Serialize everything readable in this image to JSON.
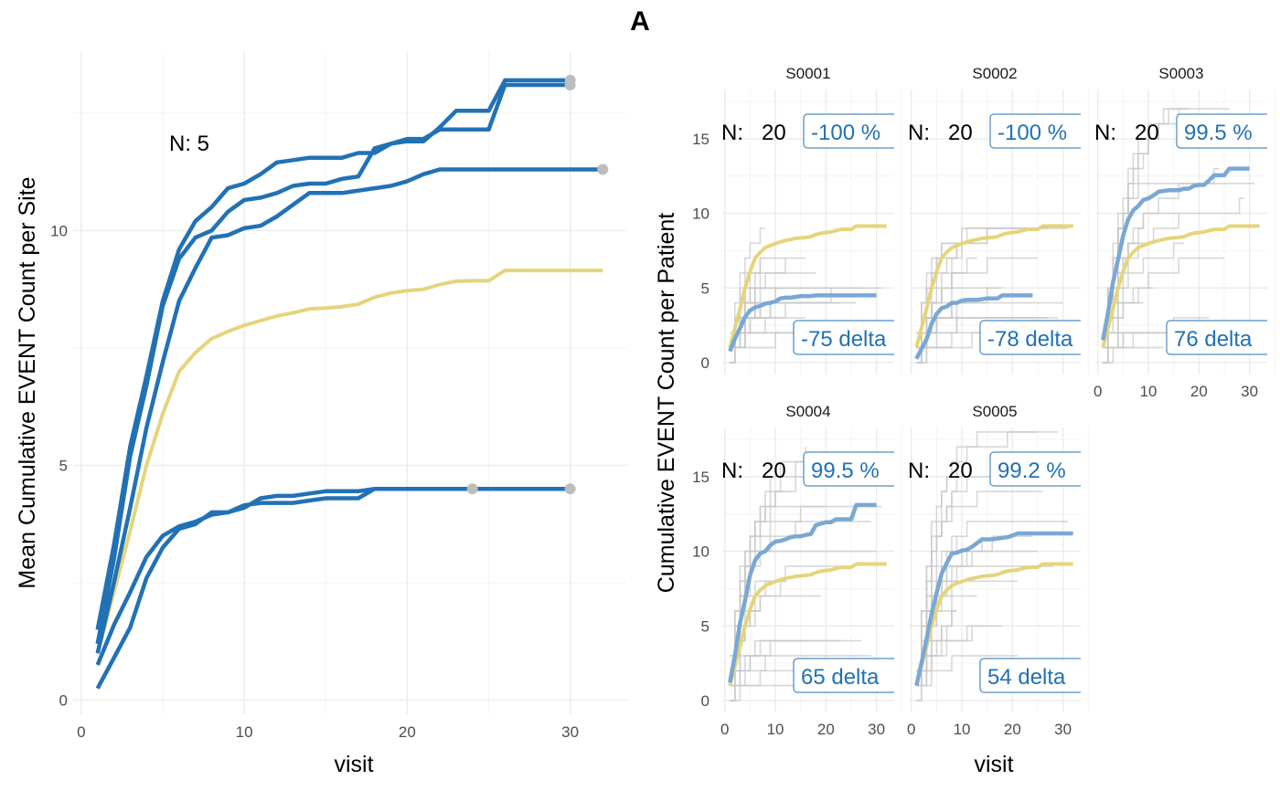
{
  "title": "A",
  "colors": {
    "site": "#2171b5",
    "site_facet": "#7aa8d4",
    "overall": "#e5d57a",
    "patient": "#c8c8c8",
    "endpoint": "#bdbdbd",
    "label": "#2171b5"
  },
  "left_panel": {
    "ylabel": "Mean Cumulative EVENT Count per Site",
    "xlabel": "visit",
    "n_label": "N: 5",
    "x_ticks": [
      "0",
      "10",
      "20",
      "30"
    ],
    "y_ticks": [
      "0",
      "5",
      "10"
    ]
  },
  "right_panel": {
    "ylabel": "Cumulative EVENT Count per Patient",
    "xlabel": "visit",
    "x_ticks": [
      "0",
      "10",
      "20",
      "30"
    ],
    "y_ticks": [
      "0",
      "5",
      "10",
      "15"
    ]
  },
  "facets": [
    {
      "name": "S0001",
      "n_label": "N:",
      "n_value": "20",
      "pct": "-100 %",
      "delta": "-75 delta"
    },
    {
      "name": "S0002",
      "n_label": "N:",
      "n_value": "20",
      "pct": "-100 %",
      "delta": "-78 delta"
    },
    {
      "name": "S0003",
      "n_label": "N:",
      "n_value": "20",
      "pct": "99.5 %",
      "delta": "76 delta"
    },
    {
      "name": "S0004",
      "n_label": "N:",
      "n_value": "20",
      "pct": "99.5 %",
      "delta": "65 delta"
    },
    {
      "name": "S0005",
      "n_label": "N:",
      "n_value": "20",
      "pct": "99.2 %",
      "delta": "54 delta"
    }
  ],
  "chart_data": [
    {
      "type": "line",
      "title": "",
      "xlabel": "visit",
      "ylabel": "Mean Cumulative EVENT Count per Site",
      "xlim": [
        -0.5,
        33.5
      ],
      "ylim": [
        -0.3,
        13.8
      ],
      "x_ticks": [
        0,
        10,
        20,
        30
      ],
      "y_ticks": [
        0,
        5,
        10
      ],
      "overall": {
        "x": [
          1,
          2,
          3,
          4,
          5,
          6,
          7,
          8,
          9,
          10,
          11,
          12,
          13,
          14,
          15,
          16,
          17,
          18,
          19,
          20,
          21,
          22,
          23,
          24,
          25,
          26,
          27,
          28,
          29,
          30,
          31,
          32
        ],
        "y": [
          1.0,
          2.3,
          3.6,
          5.0,
          6.1,
          7.0,
          7.4,
          7.7,
          7.85,
          7.98,
          8.08,
          8.18,
          8.25,
          8.33,
          8.35,
          8.38,
          8.43,
          8.58,
          8.67,
          8.72,
          8.75,
          8.85,
          8.92,
          8.93,
          8.93,
          9.15,
          9.15,
          9.15,
          9.15,
          9.15,
          9.15,
          9.15
        ]
      },
      "series": [
        {
          "name": "S0001",
          "x": [
            1,
            2,
            3,
            4,
            5,
            6,
            7,
            8,
            9,
            10,
            11,
            12,
            13,
            14,
            15,
            16,
            17,
            18,
            19,
            20,
            21,
            22,
            23,
            24
          ],
          "y": [
            0.75,
            1.6,
            2.3,
            3.05,
            3.5,
            3.7,
            3.8,
            3.95,
            4.0,
            4.1,
            4.3,
            4.35,
            4.35,
            4.4,
            4.45,
            4.45,
            4.45,
            4.5,
            4.5,
            4.5,
            4.5,
            4.5,
            4.5,
            4.5
          ]
        },
        {
          "name": "S0002",
          "x": [
            1,
            2,
            3,
            4,
            5,
            6,
            7,
            8,
            9,
            10,
            11,
            12,
            13,
            14,
            15,
            16,
            17,
            18,
            19,
            20,
            21,
            22,
            23,
            24,
            25,
            26,
            27,
            28,
            29,
            30
          ],
          "y": [
            0.25,
            0.9,
            1.55,
            2.6,
            3.25,
            3.65,
            3.75,
            4.0,
            4.0,
            4.15,
            4.2,
            4.2,
            4.2,
            4.25,
            4.3,
            4.3,
            4.3,
            4.5,
            4.5,
            4.5,
            4.5,
            4.5,
            4.5,
            4.5,
            4.5,
            4.5,
            4.5,
            4.5,
            4.5,
            4.5
          ]
        },
        {
          "name": "S0003",
          "x": [
            1,
            2,
            3,
            4,
            5,
            6,
            7,
            8,
            9,
            10,
            11,
            12,
            13,
            14,
            15,
            16,
            17,
            18,
            19,
            20,
            21,
            22,
            23,
            24,
            25,
            26,
            27,
            28,
            29,
            30
          ],
          "y": [
            1.5,
            3.3,
            5.4,
            6.9,
            8.5,
            9.6,
            10.2,
            10.5,
            10.9,
            11.0,
            11.2,
            11.45,
            11.5,
            11.55,
            11.55,
            11.55,
            11.65,
            11.65,
            11.85,
            11.9,
            11.9,
            12.2,
            12.55,
            12.55,
            12.55,
            13.2,
            13.2,
            13.2,
            13.2,
            13.2
          ]
        },
        {
          "name": "S0004",
          "x": [
            1,
            2,
            3,
            4,
            5,
            6,
            7,
            8,
            9,
            10,
            11,
            12,
            13,
            14,
            15,
            16,
            17,
            18,
            19,
            20,
            21,
            22,
            23,
            24,
            25,
            26,
            27,
            28,
            29,
            30
          ],
          "y": [
            1.2,
            3.0,
            5.2,
            6.7,
            8.4,
            9.4,
            9.85,
            10.0,
            10.4,
            10.65,
            10.7,
            10.8,
            10.95,
            11.0,
            11.0,
            11.1,
            11.15,
            11.75,
            11.85,
            11.95,
            11.95,
            12.15,
            12.15,
            12.15,
            12.15,
            13.1,
            13.1,
            13.1,
            13.1,
            13.1
          ]
        },
        {
          "name": "S0005",
          "x": [
            1,
            2,
            3,
            4,
            5,
            6,
            7,
            8,
            9,
            10,
            11,
            12,
            13,
            14,
            15,
            16,
            17,
            18,
            19,
            20,
            21,
            22,
            23,
            24,
            25,
            26,
            27,
            28,
            29,
            30,
            31,
            32
          ],
          "y": [
            1.0,
            2.5,
            4.1,
            5.8,
            7.2,
            8.5,
            9.2,
            9.85,
            9.9,
            10.05,
            10.1,
            10.3,
            10.55,
            10.8,
            10.8,
            10.8,
            10.85,
            10.9,
            10.95,
            11.05,
            11.2,
            11.3,
            11.3,
            11.3,
            11.3,
            11.3,
            11.3,
            11.3,
            11.3,
            11.3,
            11.3,
            11.3
          ]
        }
      ],
      "endpoints": [
        {
          "x": 24,
          "y": 4.5
        },
        {
          "x": 30,
          "y": 4.5
        },
        {
          "x": 30,
          "y": 13.2
        },
        {
          "x": 30,
          "y": 13.1
        },
        {
          "x": 32,
          "y": 11.3
        }
      ]
    },
    {
      "type": "line",
      "title": "",
      "xlabel": "visit",
      "ylabel": "Cumulative EVENT Count per Patient",
      "xlim": [
        -0.5,
        33.5
      ],
      "ylim": [
        -0.8,
        18.3
      ],
      "x_ticks": [
        0,
        10,
        20,
        30
      ],
      "y_ticks": [
        0,
        5,
        10,
        15
      ],
      "overall": {
        "x": [
          1,
          2,
          3,
          4,
          5,
          6,
          7,
          8,
          9,
          10,
          11,
          12,
          13,
          14,
          15,
          16,
          17,
          18,
          19,
          20,
          21,
          22,
          23,
          24,
          25,
          26,
          27,
          28,
          29,
          30,
          31,
          32
        ],
        "y": [
          1.0,
          2.3,
          3.6,
          5.0,
          6.1,
          7.0,
          7.4,
          7.7,
          7.85,
          7.98,
          8.08,
          8.18,
          8.25,
          8.33,
          8.35,
          8.38,
          8.43,
          8.58,
          8.67,
          8.72,
          8.75,
          8.85,
          8.92,
          8.93,
          8.93,
          9.15,
          9.15,
          9.15,
          9.15,
          9.15,
          9.15,
          9.15
        ]
      },
      "facets": [
        {
          "name": "S0001",
          "x": [
            1,
            2,
            3,
            4,
            5,
            6,
            7,
            8,
            9,
            10,
            11,
            12,
            13,
            14,
            15,
            16,
            17,
            18,
            19,
            20,
            21,
            22,
            23,
            24,
            25,
            26,
            27,
            28,
            29,
            30
          ],
          "y": [
            0.75,
            1.6,
            2.3,
            3.05,
            3.5,
            3.7,
            3.8,
            3.95,
            4.0,
            4.1,
            4.3,
            4.35,
            4.35,
            4.4,
            4.45,
            4.45,
            4.45,
            4.5,
            4.5,
            4.5,
            4.5,
            4.5,
            4.5,
            4.5,
            4.5,
            4.5,
            4.5,
            4.5,
            4.5,
            4.5
          ]
        },
        {
          "name": "S0002",
          "x": [
            1,
            2,
            3,
            4,
            5,
            6,
            7,
            8,
            9,
            10,
            11,
            12,
            13,
            14,
            15,
            16,
            17,
            18,
            19,
            20,
            21,
            22,
            23,
            24
          ],
          "y": [
            0.25,
            0.9,
            1.55,
            2.6,
            3.25,
            3.65,
            3.75,
            4.0,
            4.0,
            4.15,
            4.2,
            4.2,
            4.2,
            4.25,
            4.3,
            4.3,
            4.3,
            4.5,
            4.5,
            4.5,
            4.5,
            4.5,
            4.5,
            4.5
          ]
        },
        {
          "name": "S0003",
          "x": [
            1,
            2,
            3,
            4,
            5,
            6,
            7,
            8,
            9,
            10,
            11,
            12,
            13,
            14,
            15,
            16,
            17,
            18,
            19,
            20,
            21,
            22,
            23,
            24,
            25,
            26,
            27,
            28,
            29,
            30
          ],
          "y": [
            1.5,
            3.3,
            5.4,
            6.9,
            8.5,
            9.6,
            10.2,
            10.5,
            10.9,
            11.0,
            11.2,
            11.45,
            11.5,
            11.55,
            11.55,
            11.55,
            11.65,
            11.65,
            11.85,
            11.9,
            11.9,
            12.2,
            12.55,
            12.55,
            12.55,
            13.0,
            13.0,
            13.0,
            13.0,
            13.0
          ]
        },
        {
          "name": "S0004",
          "x": [
            1,
            2,
            3,
            4,
            5,
            6,
            7,
            8,
            9,
            10,
            11,
            12,
            13,
            14,
            15,
            16,
            17,
            18,
            19,
            20,
            21,
            22,
            23,
            24,
            25,
            26,
            27,
            28,
            29,
            30
          ],
          "y": [
            1.2,
            3.0,
            5.2,
            6.7,
            8.4,
            9.4,
            9.85,
            10.0,
            10.4,
            10.65,
            10.7,
            10.8,
            10.95,
            11.0,
            11.0,
            11.1,
            11.15,
            11.75,
            11.85,
            11.95,
            11.95,
            12.15,
            12.15,
            12.15,
            12.15,
            13.1,
            13.1,
            13.1,
            13.1,
            13.1
          ]
        },
        {
          "name": "S0005",
          "x": [
            1,
            2,
            3,
            4,
            5,
            6,
            7,
            8,
            9,
            10,
            11,
            12,
            13,
            14,
            15,
            16,
            17,
            18,
            19,
            20,
            21,
            22,
            23,
            24,
            25,
            26,
            27,
            28,
            29,
            30,
            31,
            32
          ],
          "y": [
            1.0,
            2.5,
            4.1,
            5.8,
            7.2,
            8.5,
            9.2,
            9.85,
            9.9,
            10.05,
            10.1,
            10.3,
            10.55,
            10.8,
            10.8,
            10.8,
            10.85,
            10.9,
            10.95,
            11.05,
            11.2,
            11.2,
            11.2,
            11.2,
            11.2,
            11.2,
            11.2,
            11.2,
            11.2,
            11.2,
            11.2,
            11.2
          ]
        }
      ]
    }
  ]
}
